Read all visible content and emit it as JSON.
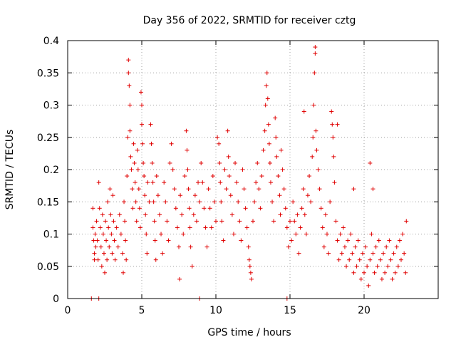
{
  "chart_data": {
    "type": "scatter",
    "title": "Day 356 of 2022, SRMTID for receiver cztg",
    "xlabel": "GPS time / hours",
    "ylabel": "SRMTID / TECUs",
    "xlim": [
      0,
      25
    ],
    "ylim": [
      0,
      0.4
    ],
    "xticks": [
      0,
      5,
      10,
      15,
      20
    ],
    "xtick_labels": [
      "0",
      "5",
      "10",
      "15",
      "20"
    ],
    "yticks": [
      0,
      0.05,
      0.1,
      0.15,
      0.2,
      0.25,
      0.3,
      0.35,
      0.4
    ],
    "ytick_labels": [
      "0",
      "0.05",
      "0.1",
      "0.15",
      "0.2",
      "0.25",
      "0.3",
      "0.35",
      "0.4"
    ],
    "grid": true,
    "marker": "plus",
    "color": "#e00000",
    "series": [
      {
        "name": "SRMTID",
        "points": [
          [
            1.6,
            0.0
          ],
          [
            2.1,
            0.0
          ],
          [
            8.9,
            0.0
          ],
          [
            14.8,
            0.0
          ],
          [
            1.7,
            0.14
          ],
          [
            1.7,
            0.11
          ],
          [
            1.75,
            0.09
          ],
          [
            1.8,
            0.07
          ],
          [
            1.8,
            0.06
          ],
          [
            1.85,
            0.1
          ],
          [
            1.9,
            0.08
          ],
          [
            1.95,
            0.12
          ],
          [
            2.0,
            0.09
          ],
          [
            2.05,
            0.06
          ],
          [
            2.1,
            0.18
          ],
          [
            2.15,
            0.14
          ],
          [
            2.2,
            0.11
          ],
          [
            2.25,
            0.08
          ],
          [
            2.3,
            0.05
          ],
          [
            2.35,
            0.13
          ],
          [
            2.4,
            0.1
          ],
          [
            2.45,
            0.07
          ],
          [
            2.5,
            0.04
          ],
          [
            2.55,
            0.12
          ],
          [
            2.6,
            0.09
          ],
          [
            2.65,
            0.06
          ],
          [
            2.7,
            0.15
          ],
          [
            2.75,
            0.11
          ],
          [
            2.8,
            0.08
          ],
          [
            2.85,
            0.17
          ],
          [
            2.9,
            0.13
          ],
          [
            2.95,
            0.1
          ],
          [
            3.0,
            0.07
          ],
          [
            3.05,
            0.16
          ],
          [
            3.1,
            0.12
          ],
          [
            3.15,
            0.09
          ],
          [
            3.2,
            0.06
          ],
          [
            3.3,
            0.11
          ],
          [
            3.4,
            0.08
          ],
          [
            3.5,
            0.13
          ],
          [
            3.6,
            0.1
          ],
          [
            3.7,
            0.07
          ],
          [
            3.75,
            0.04
          ],
          [
            3.8,
            0.15
          ],
          [
            3.85,
            0.12
          ],
          [
            3.9,
            0.09
          ],
          [
            3.95,
            0.06
          ],
          [
            4.0,
            0.19
          ],
          [
            4.05,
            0.25
          ],
          [
            4.1,
            0.37
          ],
          [
            4.1,
            0.35
          ],
          [
            4.15,
            0.33
          ],
          [
            4.2,
            0.3
          ],
          [
            4.2,
            0.26
          ],
          [
            4.25,
            0.22
          ],
          [
            4.3,
            0.2
          ],
          [
            4.35,
            0.17
          ],
          [
            4.4,
            0.14
          ],
          [
            4.45,
            0.24
          ],
          [
            4.5,
            0.21
          ],
          [
            4.55,
            0.18
          ],
          [
            4.6,
            0.15
          ],
          [
            4.65,
            0.12
          ],
          [
            4.7,
            0.23
          ],
          [
            4.75,
            0.2
          ],
          [
            4.8,
            0.17
          ],
          [
            4.85,
            0.14
          ],
          [
            4.9,
            0.11
          ],
          [
            4.95,
            0.32
          ],
          [
            5.0,
            0.3
          ],
          [
            5.0,
            0.27
          ],
          [
            5.05,
            0.24
          ],
          [
            5.1,
            0.21
          ],
          [
            5.15,
            0.19
          ],
          [
            5.2,
            0.16
          ],
          [
            5.25,
            0.13
          ],
          [
            5.3,
            0.1
          ],
          [
            5.35,
            0.07
          ],
          [
            5.4,
            0.18
          ],
          [
            5.5,
            0.15
          ],
          [
            5.6,
            0.27
          ],
          [
            5.65,
            0.24
          ],
          [
            5.7,
            0.21
          ],
          [
            5.75,
            0.18
          ],
          [
            5.8,
            0.15
          ],
          [
            5.85,
            0.12
          ],
          [
            5.9,
            0.09
          ],
          [
            5.95,
            0.06
          ],
          [
            6.0,
            0.19
          ],
          [
            6.1,
            0.16
          ],
          [
            6.2,
            0.13
          ],
          [
            6.3,
            0.1
          ],
          [
            6.4,
            0.07
          ],
          [
            6.5,
            0.18
          ],
          [
            6.6,
            0.15
          ],
          [
            6.7,
            0.12
          ],
          [
            6.8,
            0.09
          ],
          [
            6.9,
            0.21
          ],
          [
            7.0,
            0.24
          ],
          [
            7.1,
            0.2
          ],
          [
            7.2,
            0.17
          ],
          [
            7.3,
            0.14
          ],
          [
            7.4,
            0.11
          ],
          [
            7.5,
            0.08
          ],
          [
            7.55,
            0.03
          ],
          [
            7.6,
            0.16
          ],
          [
            7.7,
            0.13
          ],
          [
            7.8,
            0.1
          ],
          [
            7.9,
            0.19
          ],
          [
            8.0,
            0.26
          ],
          [
            8.05,
            0.23
          ],
          [
            8.1,
            0.2
          ],
          [
            8.15,
            0.17
          ],
          [
            8.2,
            0.14
          ],
          [
            8.25,
            0.11
          ],
          [
            8.3,
            0.08
          ],
          [
            8.4,
            0.05
          ],
          [
            8.5,
            0.13
          ],
          [
            8.6,
            0.16
          ],
          [
            8.7,
            0.12
          ],
          [
            8.8,
            0.18
          ],
          [
            8.9,
            0.15
          ],
          [
            9.0,
            0.21
          ],
          [
            9.1,
            0.18
          ],
          [
            9.2,
            0.14
          ],
          [
            9.3,
            0.11
          ],
          [
            9.4,
            0.08
          ],
          [
            9.5,
            0.17
          ],
          [
            9.6,
            0.14
          ],
          [
            9.7,
            0.11
          ],
          [
            9.8,
            0.19
          ],
          [
            9.9,
            0.15
          ],
          [
            10.0,
            0.12
          ],
          [
            10.1,
            0.25
          ],
          [
            10.2,
            0.24
          ],
          [
            10.25,
            0.21
          ],
          [
            10.3,
            0.18
          ],
          [
            10.35,
            0.15
          ],
          [
            10.4,
            0.12
          ],
          [
            10.5,
            0.09
          ],
          [
            10.6,
            0.2
          ],
          [
            10.7,
            0.17
          ],
          [
            10.8,
            0.26
          ],
          [
            10.85,
            0.22
          ],
          [
            10.9,
            0.19
          ],
          [
            11.0,
            0.16
          ],
          [
            11.1,
            0.13
          ],
          [
            11.2,
            0.1
          ],
          [
            11.3,
            0.21
          ],
          [
            11.4,
            0.18
          ],
          [
            11.5,
            0.15
          ],
          [
            11.6,
            0.12
          ],
          [
            11.7,
            0.09
          ],
          [
            11.8,
            0.2
          ],
          [
            11.9,
            0.17
          ],
          [
            12.0,
            0.14
          ],
          [
            12.1,
            0.11
          ],
          [
            12.2,
            0.08
          ],
          [
            12.25,
            0.06
          ],
          [
            12.3,
            0.05
          ],
          [
            12.35,
            0.04
          ],
          [
            12.4,
            0.03
          ],
          [
            12.5,
            0.12
          ],
          [
            12.6,
            0.15
          ],
          [
            12.7,
            0.18
          ],
          [
            12.8,
            0.21
          ],
          [
            12.9,
            0.17
          ],
          [
            13.0,
            0.14
          ],
          [
            13.1,
            0.19
          ],
          [
            13.2,
            0.23
          ],
          [
            13.3,
            0.26
          ],
          [
            13.35,
            0.3
          ],
          [
            13.4,
            0.33
          ],
          [
            13.45,
            0.35
          ],
          [
            13.5,
            0.31
          ],
          [
            13.55,
            0.27
          ],
          [
            13.6,
            0.24
          ],
          [
            13.65,
            0.21
          ],
          [
            13.7,
            0.18
          ],
          [
            13.8,
            0.15
          ],
          [
            13.9,
            0.12
          ],
          [
            14.0,
            0.28
          ],
          [
            14.05,
            0.25
          ],
          [
            14.1,
            0.22
          ],
          [
            14.2,
            0.19
          ],
          [
            14.3,
            0.16
          ],
          [
            14.35,
            0.13
          ],
          [
            14.4,
            0.23
          ],
          [
            14.5,
            0.2
          ],
          [
            14.6,
            0.17
          ],
          [
            14.7,
            0.14
          ],
          [
            14.8,
            0.11
          ],
          [
            14.9,
            0.08
          ],
          [
            15.0,
            0.12
          ],
          [
            15.1,
            0.09
          ],
          [
            15.2,
            0.15
          ],
          [
            15.3,
            0.12
          ],
          [
            15.4,
            0.1
          ],
          [
            15.5,
            0.13
          ],
          [
            15.6,
            0.07
          ],
          [
            15.7,
            0.11
          ],
          [
            15.8,
            0.14
          ],
          [
            15.9,
            0.17
          ],
          [
            16.0,
            0.13
          ],
          [
            16.1,
            0.1
          ],
          [
            16.2,
            0.16
          ],
          [
            16.3,
            0.19
          ],
          [
            16.4,
            0.15
          ],
          [
            16.5,
            0.22
          ],
          [
            16.55,
            0.25
          ],
          [
            16.6,
            0.3
          ],
          [
            16.65,
            0.35
          ],
          [
            16.7,
            0.39
          ],
          [
            16.7,
            0.38
          ],
          [
            16.75,
            0.26
          ],
          [
            16.8,
            0.23
          ],
          [
            16.9,
            0.2
          ],
          [
            17.0,
            0.17
          ],
          [
            17.1,
            0.14
          ],
          [
            17.2,
            0.11
          ],
          [
            17.3,
            0.08
          ],
          [
            17.4,
            0.13
          ],
          [
            17.5,
            0.1
          ],
          [
            17.6,
            0.07
          ],
          [
            17.7,
            0.15
          ],
          [
            17.8,
            0.29
          ],
          [
            17.85,
            0.27
          ],
          [
            17.9,
            0.25
          ],
          [
            17.95,
            0.22
          ],
          [
            18.0,
            0.18
          ],
          [
            18.1,
            0.12
          ],
          [
            18.2,
            0.09
          ],
          [
            18.3,
            0.06
          ],
          [
            18.4,
            0.1
          ],
          [
            18.5,
            0.07
          ],
          [
            18.6,
            0.11
          ],
          [
            18.7,
            0.08
          ],
          [
            18.8,
            0.05
          ],
          [
            18.9,
            0.09
          ],
          [
            19.0,
            0.06
          ],
          [
            19.1,
            0.1
          ],
          [
            19.2,
            0.07
          ],
          [
            19.3,
            0.04
          ],
          [
            19.4,
            0.08
          ],
          [
            19.5,
            0.05
          ],
          [
            19.6,
            0.09
          ],
          [
            19.7,
            0.06
          ],
          [
            19.8,
            0.03
          ],
          [
            19.9,
            0.07
          ],
          [
            20.0,
            0.04
          ],
          [
            20.1,
            0.08
          ],
          [
            20.2,
            0.05
          ],
          [
            20.3,
            0.02
          ],
          [
            20.4,
            0.06
          ],
          [
            20.5,
            0.1
          ],
          [
            20.6,
            0.07
          ],
          [
            20.7,
            0.04
          ],
          [
            20.8,
            0.08
          ],
          [
            20.9,
            0.05
          ],
          [
            21.0,
            0.09
          ],
          [
            21.1,
            0.06
          ],
          [
            21.2,
            0.03
          ],
          [
            21.3,
            0.07
          ],
          [
            21.4,
            0.04
          ],
          [
            21.5,
            0.08
          ],
          [
            21.6,
            0.05
          ],
          [
            21.7,
            0.09
          ],
          [
            21.8,
            0.06
          ],
          [
            21.9,
            0.03
          ],
          [
            22.0,
            0.07
          ],
          [
            22.1,
            0.04
          ],
          [
            22.2,
            0.08
          ],
          [
            22.3,
            0.05
          ],
          [
            22.4,
            0.09
          ],
          [
            22.5,
            0.06
          ],
          [
            22.6,
            0.1
          ],
          [
            22.7,
            0.07
          ],
          [
            22.8,
            0.04
          ],
          [
            22.85,
            0.12
          ],
          [
            20.4,
            0.21
          ],
          [
            20.6,
            0.17
          ],
          [
            19.3,
            0.17
          ],
          [
            18.2,
            0.27
          ],
          [
            15.95,
            0.29
          ]
        ]
      }
    ]
  }
}
